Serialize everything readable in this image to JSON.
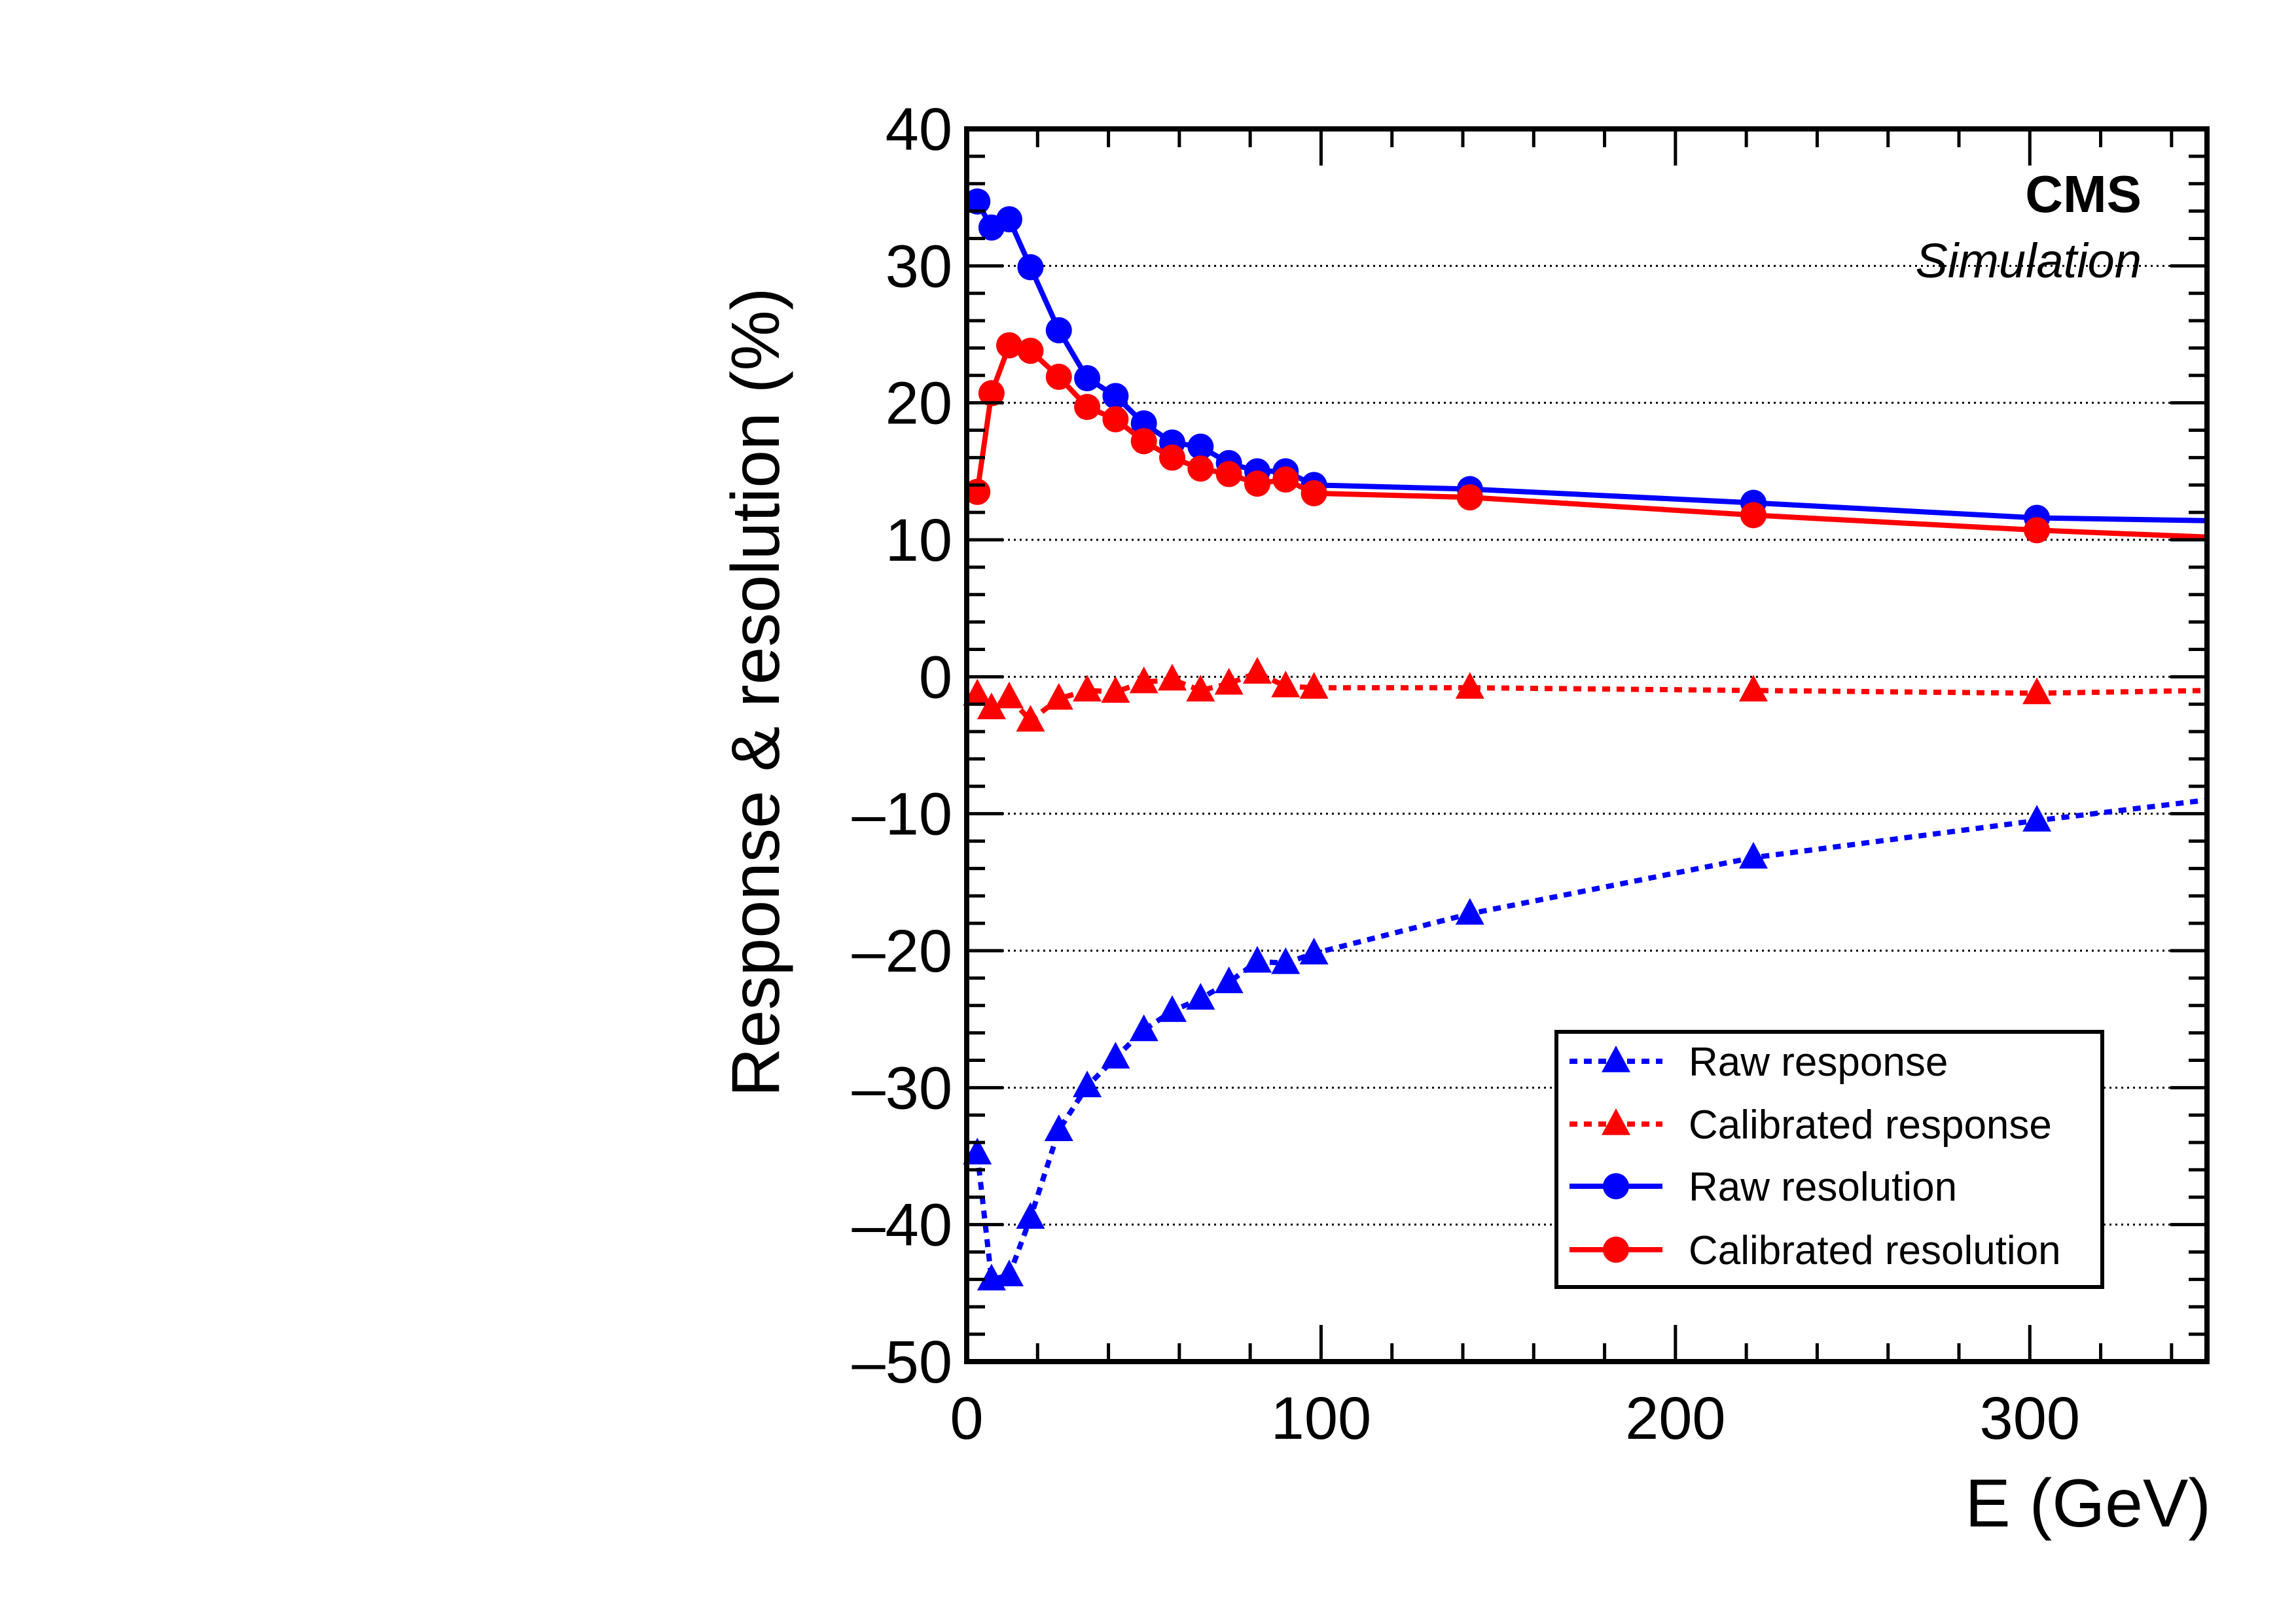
{
  "chart_data": {
    "type": "line",
    "brand": "CMS",
    "subtitle": "Simulation",
    "xlabel": "E (GeV)",
    "ylabel": "Response & resolution (%)",
    "xlim": [
      0,
      350
    ],
    "ylim": [
      -50,
      40
    ],
    "xticks": [
      0,
      100,
      200,
      300
    ],
    "yticks": [
      -50,
      -40,
      -30,
      -20,
      -10,
      0,
      10,
      20,
      30,
      40
    ],
    "grid": "horizontal dotted",
    "legend_position": "bottom-right",
    "series": [
      {
        "name": "Raw response",
        "color": "#0000ff",
        "line_style": "dotted",
        "marker": "triangle",
        "x": [
          3,
          7,
          12,
          18,
          26,
          34,
          42,
          50,
          58,
          66,
          74,
          82,
          90,
          98,
          142,
          222,
          302,
          350
        ],
        "y": [
          -34.8,
          -44.0,
          -43.7,
          -39.5,
          -33.1,
          -29.9,
          -27.8,
          -25.8,
          -24.4,
          -23.5,
          -22.3,
          -20.8,
          -20.9,
          -20.2,
          -17.3,
          -13.2,
          -10.5,
          -9.0
        ]
      },
      {
        "name": "Calibrated response",
        "color": "#ff0000",
        "line_style": "dotted",
        "marker": "triangle",
        "x": [
          3,
          7,
          12,
          18,
          26,
          34,
          42,
          50,
          58,
          66,
          74,
          82,
          90,
          98,
          142,
          222,
          302,
          350
        ],
        "y": [
          -1.3,
          -2.3,
          -1.5,
          -3.2,
          -1.6,
          -1.0,
          -1.1,
          -0.4,
          -0.2,
          -1.0,
          -0.5,
          0.3,
          -0.7,
          -0.8,
          -0.8,
          -1.0,
          -1.2,
          -1.0
        ]
      },
      {
        "name": "Raw resolution",
        "color": "#0000ff",
        "line_style": "solid",
        "marker": "circle",
        "x": [
          3,
          7,
          12,
          18,
          26,
          34,
          42,
          50,
          58,
          66,
          74,
          82,
          90,
          98,
          142,
          222,
          302,
          350
        ],
        "y": [
          34.7,
          32.8,
          33.4,
          29.9,
          25.3,
          21.8,
          20.5,
          18.5,
          17.1,
          16.8,
          15.6,
          15.0,
          15.0,
          14.0,
          13.7,
          12.7,
          11.6,
          11.4
        ]
      },
      {
        "name": "Calibrated resolution",
        "color": "#ff0000",
        "line_style": "solid",
        "marker": "circle",
        "x": [
          3,
          7,
          12,
          18,
          26,
          34,
          42,
          50,
          58,
          66,
          74,
          82,
          90,
          98,
          142,
          222,
          302,
          350
        ],
        "y": [
          13.5,
          20.7,
          24.2,
          23.8,
          21.9,
          19.7,
          18.8,
          17.2,
          16.0,
          15.2,
          14.8,
          14.1,
          14.4,
          13.4,
          13.1,
          11.8,
          10.7,
          10.2
        ]
      }
    ]
  }
}
